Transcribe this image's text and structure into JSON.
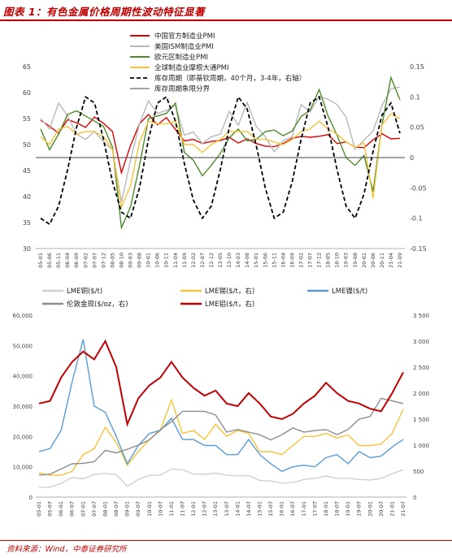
{
  "figure": {
    "title": "图表 1：有色金属价格周期性波动特征显著",
    "source": "资料来源：Wind，中泰证券研究所"
  },
  "chart_data": [
    {
      "type": "line",
      "y_left": {
        "min": 30,
        "max": 65,
        "ticks": [
          30,
          35,
          40,
          45,
          50,
          55,
          60,
          65
        ]
      },
      "y_right": {
        "min": -0.15,
        "max": 0.15,
        "ticks": [
          -0.15,
          -0.1,
          -0.05,
          0,
          0.05,
          0.1,
          0.15
        ],
        "tick_labels": [
          "-0.15",
          "-0.1",
          "-0.05",
          "0",
          "0.05",
          "0.1",
          "0.15"
        ]
      },
      "x_ticks": [
        "05-01",
        "05-06",
        "05-11",
        "06-04",
        "06-09",
        "07-02",
        "07-07",
        "07-12",
        "08-05",
        "08-10",
        "09-03",
        "09-08",
        "10-01",
        "10-06",
        "10-11",
        "11-04",
        "11-09",
        "12-02",
        "12-07",
        "12-12",
        "13-05",
        "13-10",
        "14-03",
        "14-08",
        "15-01",
        "15-06",
        "15-11",
        "16-04",
        "16-09",
        "17-02",
        "17-07",
        "17-12",
        "18-05",
        "18-10",
        "19-03",
        "19-08",
        "20-01",
        "20-06",
        "20-11",
        "21-04",
        "21-09"
      ],
      "legend": [
        "中国官方制造业PMI",
        "美国ISM制造业PMI",
        "欧元区制造业PMI",
        "全球制造业摩根大通PMI",
        "库存周期（即基钦周期，40个月，3-4年，右轴）",
        "库存周期象限分界"
      ],
      "series": [
        {
          "name": "中国官方制造业PMI",
          "color": "#e00000",
          "axis": "left",
          "values": [
            54.7,
            53.5,
            52.2,
            54.8,
            54.2,
            53.3,
            55.3,
            54.1,
            52.5,
            44.6,
            49.8,
            54.0,
            55.8,
            53.8,
            55.2,
            52.9,
            50.7,
            51.0,
            50.2,
            50.6,
            50.8,
            51.4,
            50.3,
            51.1,
            50.2,
            49.7,
            49.6,
            50.2,
            51.2,
            51.6,
            51.4,
            51.6,
            51.9,
            50.2,
            50.5,
            49.5,
            49.4,
            50.9,
            52.1,
            51.1,
            51.2
          ]
        },
        {
          "name": "美国ISM制造业PMI",
          "color": "#b8b8b8",
          "axis": "left",
          "values": [
            55.0,
            53.0,
            58.0,
            55.5,
            52.0,
            51.0,
            52.5,
            50.5,
            49.0,
            38.9,
            47.0,
            54.0,
            58.4,
            56.0,
            56.6,
            57.5,
            51.8,
            52.4,
            50.2,
            51.5,
            52.0,
            56.4,
            53.7,
            58.1,
            53.5,
            51.5,
            48.6,
            50.8,
            51.5,
            57.7,
            56.3,
            59.3,
            58.7,
            57.7,
            55.3,
            49.1,
            50.9,
            52.6,
            57.5,
            60.7,
            61.1
          ]
        },
        {
          "name": "欧元区制造业PMI",
          "color": "#4f8a2a",
          "axis": "left",
          "values": [
            53.0,
            49.0,
            52.0,
            55.8,
            56.5,
            55.5,
            54.5,
            53.5,
            49.5,
            34.0,
            38.0,
            46.0,
            55.0,
            55.5,
            56.0,
            58.0,
            48.5,
            47.0,
            44.0,
            46.0,
            48.3,
            51.3,
            53.0,
            50.7,
            51.0,
            52.5,
            52.8,
            51.7,
            52.6,
            55.4,
            56.6,
            60.6,
            55.5,
            51.8,
            47.5,
            46.0,
            47.9,
            41.0,
            53.8,
            62.9,
            58.6
          ]
        },
        {
          "name": "全球制造业摩根大通PMI",
          "color": "#f5c33b",
          "axis": "left",
          "values": [
            51.5,
            50.0,
            53.0,
            53.5,
            52.0,
            52.5,
            52.5,
            51.5,
            49.0,
            38.0,
            42.0,
            50.5,
            54.5,
            54.0,
            54.0,
            54.5,
            50.0,
            50.0,
            48.5,
            50.0,
            51.0,
            52.5,
            52.5,
            52.5,
            51.0,
            51.0,
            50.5,
            50.0,
            51.0,
            52.5,
            53.0,
            54.5,
            53.0,
            52.0,
            50.5,
            49.5,
            50.3,
            39.6,
            53.8,
            55.9,
            55.0
          ]
        },
        {
          "name": "库存周期（即基钦周期，40个月，3-4年，右轴）",
          "color": "#000000",
          "axis": "right",
          "dashed": true,
          "values": [
            -0.1,
            -0.11,
            -0.08,
            -0.02,
            0.05,
            0.1,
            0.09,
            0.03,
            -0.04,
            -0.09,
            -0.1,
            -0.05,
            0.03,
            0.09,
            0.1,
            0.06,
            -0.01,
            -0.07,
            -0.1,
            -0.08,
            -0.02,
            0.05,
            0.1,
            0.08,
            0.02,
            -0.05,
            -0.1,
            -0.09,
            -0.04,
            0.03,
            0.09,
            0.1,
            0.05,
            -0.02,
            -0.08,
            -0.1,
            -0.06,
            0.01,
            0.07,
            0.09,
            0.04
          ]
        },
        {
          "name": "库存周期象限分界",
          "color": "#444444",
          "axis": "right",
          "values": [
            0,
            0
          ]
        }
      ]
    },
    {
      "type": "line",
      "y_left": {
        "min": 0,
        "max": 60000,
        "ticks": [
          0,
          10000,
          20000,
          30000,
          40000,
          50000,
          60000
        ],
        "tick_labels": [
          "0",
          "10,000",
          "20,000",
          "30,000",
          "40,000",
          "50,000",
          "60,000"
        ]
      },
      "y_right": {
        "min": 0,
        "max": 3500,
        "ticks": [
          0,
          500,
          1000,
          1500,
          2000,
          2500,
          3000,
          3500
        ],
        "tick_labels": [
          "0",
          "500",
          "1 000",
          "1 500",
          "2 000",
          "2 500",
          "3 000",
          "3 500"
        ]
      },
      "x_ticks": [
        "05-01",
        "05-07",
        "06-01",
        "06-07",
        "07-01",
        "07-07",
        "08-01",
        "08-07",
        "09-01",
        "09-07",
        "10-01",
        "10-07",
        "11-01",
        "11-07",
        "12-01",
        "12-07",
        "13-01",
        "13-07",
        "14-01",
        "14-07",
        "15-01",
        "15-07",
        "16-01",
        "16-07",
        "17-01",
        "17-07",
        "18-01",
        "18-07",
        "19-01",
        "19-07",
        "20-01",
        "20-07",
        "21-01",
        "21-07"
      ],
      "legend": [
        "LME铜($/t)",
        "LME锡($/t，右)",
        "LME镍($/t)",
        "伦敦金现($/oz，右)",
        "LME铝($/t，右)"
      ],
      "series": [
        {
          "name": "LME铜($/t)",
          "color": "#d0d0d0",
          "axis": "left",
          "values": [
            3200,
            3300,
            4500,
            6500,
            6000,
            7500,
            7800,
            7500,
            3500,
            5800,
            7200,
            7200,
            9300,
            9000,
            7600,
            7500,
            7900,
            7200,
            7000,
            7100,
            5500,
            5300,
            4600,
            4800,
            5800,
            6200,
            7000,
            6200,
            6200,
            5800,
            5600,
            6200,
            7700,
            9000
          ]
        },
        {
          "name": "LME锡($/t，右)",
          "color": "#f5c33b",
          "axis": "right",
          "values": [
            8000,
            7200,
            7200,
            8500,
            14000,
            16000,
            23000,
            18000,
            10500,
            15000,
            19000,
            22000,
            32000,
            21000,
            22000,
            19000,
            24000,
            20000,
            22000,
            21000,
            15000,
            15000,
            14000,
            17000,
            20000,
            20000,
            21000,
            19500,
            20500,
            17000,
            17000,
            17500,
            21000,
            29000
          ]
        },
        {
          "name": "LME镍($/t)",
          "color": "#5a9bd5",
          "axis": "left",
          "values": [
            15000,
            16000,
            22000,
            38000,
            52000,
            30000,
            28000,
            20000,
            11000,
            17000,
            21000,
            22000,
            26000,
            19000,
            19000,
            17000,
            17000,
            14000,
            14000,
            19000,
            14000,
            11000,
            8500,
            10000,
            10500,
            10000,
            13000,
            14000,
            11000,
            15000,
            13000,
            13500,
            16500,
            19000
          ]
        },
        {
          "name": "伦敦金现($/oz，右)",
          "color": "#8c8c8c",
          "axis": "right",
          "values": [
            420,
            440,
            540,
            640,
            650,
            680,
            900,
            850,
            920,
            1000,
            1100,
            1300,
            1450,
            1650,
            1650,
            1650,
            1580,
            1250,
            1300,
            1250,
            1200,
            1100,
            1200,
            1330,
            1250,
            1280,
            1300,
            1200,
            1300,
            1500,
            1550,
            1900,
            1850,
            1800
          ]
        },
        {
          "name": "LME铝($/t，右)",
          "color": "#c00000",
          "axis": "right",
          "values": [
            1800,
            1850,
            2300,
            2600,
            2800,
            2650,
            3000,
            2500,
            1400,
            1900,
            2150,
            2300,
            2600,
            2300,
            2100,
            1950,
            2050,
            1800,
            1750,
            2000,
            1800,
            1550,
            1500,
            1600,
            1800,
            1950,
            2200,
            2000,
            1850,
            1800,
            1700,
            1650,
            2000,
            2400
          ]
        }
      ]
    }
  ]
}
